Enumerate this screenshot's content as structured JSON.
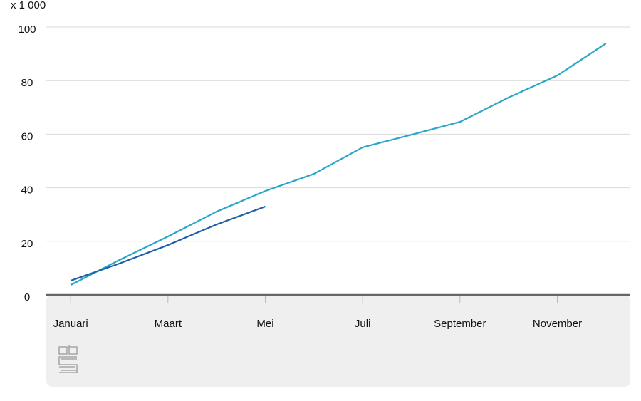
{
  "chart_data": {
    "type": "line",
    "y_unit_label": "x 1 000",
    "categories": [
      "Januari",
      null,
      "Maart",
      null,
      "Mei",
      null,
      "Juli",
      null,
      "September",
      null,
      "November",
      null
    ],
    "series": [
      {
        "color": "#2aa6c6",
        "values": [
          3.7,
          13,
          21.8,
          31.1,
          38.8,
          45.2,
          55.1,
          59.8,
          64.6,
          73.7,
          81.9,
          93.9
        ]
      },
      {
        "color": "#1f5fa6",
        "values": [
          5.3,
          11.7,
          18.6,
          26.3,
          33.0,
          null,
          null,
          null,
          null,
          null,
          null,
          null
        ]
      }
    ],
    "ylim": [
      0,
      100
    ],
    "yticks": [
      0,
      20,
      40,
      60,
      80,
      100
    ],
    "grid": true
  }
}
